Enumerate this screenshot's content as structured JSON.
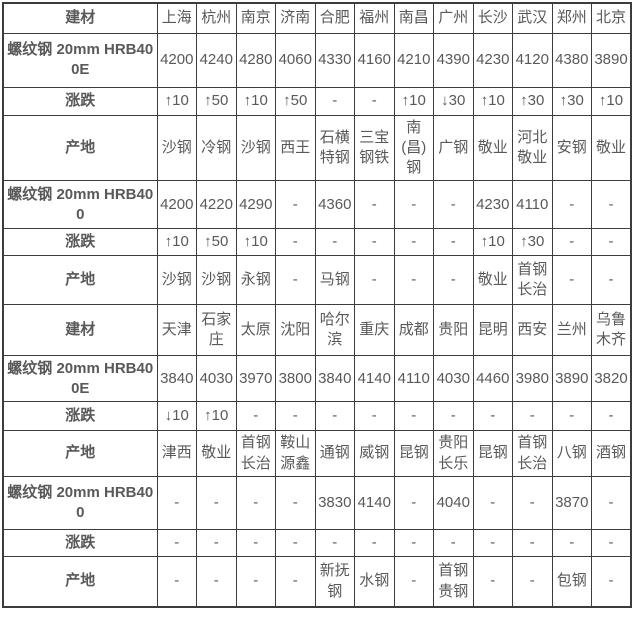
{
  "table": {
    "name": "建材价格表",
    "colors": {
      "header_label": "#ff0000",
      "city": "#0000ff",
      "up": "#fe0000",
      "down": "#008000",
      "text": "#595959",
      "border": "#3c3c3c"
    },
    "sections": [
      {
        "header": {
          "label": "建材",
          "cities": [
            "上海",
            "杭州",
            "南京",
            "济南",
            "合肥",
            "福州",
            "南昌",
            "广州",
            "长沙",
            "武汉",
            "郑州",
            "北京"
          ]
        },
        "rows": [
          {
            "label": "螺纹钢 20mm HRB400E",
            "type": "price",
            "values": [
              "4200",
              "4240",
              "4280",
              "4060",
              "4330",
              "4160",
              "4210",
              "4390",
              "4230",
              "4120",
              "4380",
              "3890"
            ]
          },
          {
            "label": "涨跌",
            "type": "change",
            "values": [
              "↑10",
              "↑50",
              "↑10",
              "↑50",
              "-",
              "-",
              "↑10",
              "↓30",
              "↑10",
              "↑30",
              "↑30",
              "↑10"
            ]
          },
          {
            "label": "产地",
            "type": "origin",
            "values": [
              "沙钢",
              "冷钢",
              "沙钢",
              "西王",
              "石横特钢",
              "三宝钢铁",
              "南(昌)钢",
              "广钢",
              "敬业",
              "河北敬业",
              "安钢",
              "敬业"
            ]
          },
          {
            "label": "螺纹钢 20mm HRB400",
            "type": "price",
            "values": [
              "4200",
              "4220",
              "4290",
              "-",
              "4360",
              "-",
              "-",
              "-",
              "4230",
              "4110",
              "-",
              "-"
            ]
          },
          {
            "label": "涨跌",
            "type": "change",
            "values": [
              "↑10",
              "↑50",
              "↑10",
              "-",
              "-",
              "-",
              "-",
              "-",
              "↑10",
              "↑30",
              "-",
              "-"
            ]
          },
          {
            "label": "产地",
            "type": "origin",
            "values": [
              "沙钢",
              "沙钢",
              "永钢",
              "-",
              "马钢",
              "-",
              "-",
              "-",
              "敬业",
              "首钢长治",
              "-",
              "-"
            ]
          }
        ]
      },
      {
        "header": {
          "label": "建材",
          "cities": [
            "天津",
            "石家庄",
            "太原",
            "沈阳",
            "哈尔滨",
            "重庆",
            "成都",
            "贵阳",
            "昆明",
            "西安",
            "兰州",
            "乌鲁木齐"
          ]
        },
        "rows": [
          {
            "label": "螺纹钢 20mm HRB400E",
            "type": "price",
            "values": [
              "3840",
              "4030",
              "3970",
              "3800",
              "3840",
              "4140",
              "4110",
              "4030",
              "4460",
              "3980",
              "3890",
              "3820"
            ]
          },
          {
            "label": "涨跌",
            "type": "change",
            "values": [
              "↓10",
              "↑10",
              "-",
              "-",
              "-",
              "-",
              "-",
              "-",
              "-",
              "-",
              "-",
              "-"
            ]
          },
          {
            "label": "产地",
            "type": "origin",
            "values": [
              "津西",
              "敬业",
              "首钢长治",
              "鞍山源鑫",
              "通钢",
              "威钢",
              "昆钢",
              "贵阳长乐",
              "昆钢",
              "首钢长治",
              "八钢",
              "酒钢"
            ]
          },
          {
            "label": "螺纹钢 20mm HRB400",
            "type": "price",
            "values": [
              "-",
              "-",
              "-",
              "-",
              "3830",
              "4140",
              "-",
              "4040",
              "-",
              "-",
              "3870",
              "-"
            ]
          },
          {
            "label": "涨跌",
            "type": "change",
            "values": [
              "-",
              "-",
              "-",
              "-",
              "-",
              "-",
              "-",
              "-",
              "-",
              "-",
              "-",
              "-"
            ]
          },
          {
            "label": "产地",
            "type": "origin",
            "values": [
              "-",
              "-",
              "-",
              "-",
              "新抚钢",
              "水钢",
              "-",
              "首钢贵钢",
              "-",
              "-",
              "包钢",
              "-"
            ]
          }
        ]
      }
    ]
  }
}
